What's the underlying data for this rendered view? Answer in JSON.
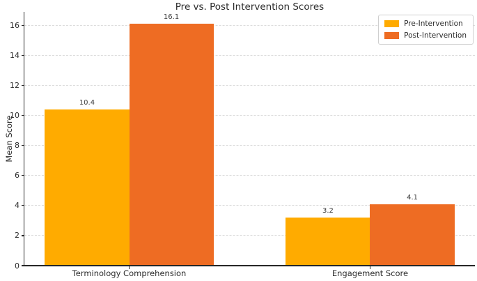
{
  "chart_data": {
    "type": "bar",
    "title": "Pre vs. Post Intervention Scores",
    "xlabel": "",
    "ylabel": "Mean Score",
    "categories": [
      "Terminology Comprehension",
      "Engagement Score"
    ],
    "series": [
      {
        "name": "Pre-Intervention",
        "color": "#FFAB00",
        "values": [
          10.4,
          3.2
        ]
      },
      {
        "name": "Post-Intervention",
        "color": "#EE6C23",
        "values": [
          16.1,
          4.1
        ]
      }
    ],
    "bar_value_labels": [
      [
        "10.4",
        "3.2"
      ],
      [
        "16.1",
        "4.1"
      ]
    ],
    "yticks": [
      0,
      2,
      4,
      6,
      8,
      10,
      12,
      14,
      16
    ],
    "ylim": [
      0,
      16.9
    ],
    "xlim": [
      -0.435,
      1.435
    ],
    "bar_width_units": 0.35,
    "grid": "horizontal-dashed",
    "legend_position": "upper-right"
  },
  "palette": {
    "background": "#ffffff",
    "grid": "#dcdcdc",
    "axis": "#262626",
    "text": "#2b2b2b"
  }
}
